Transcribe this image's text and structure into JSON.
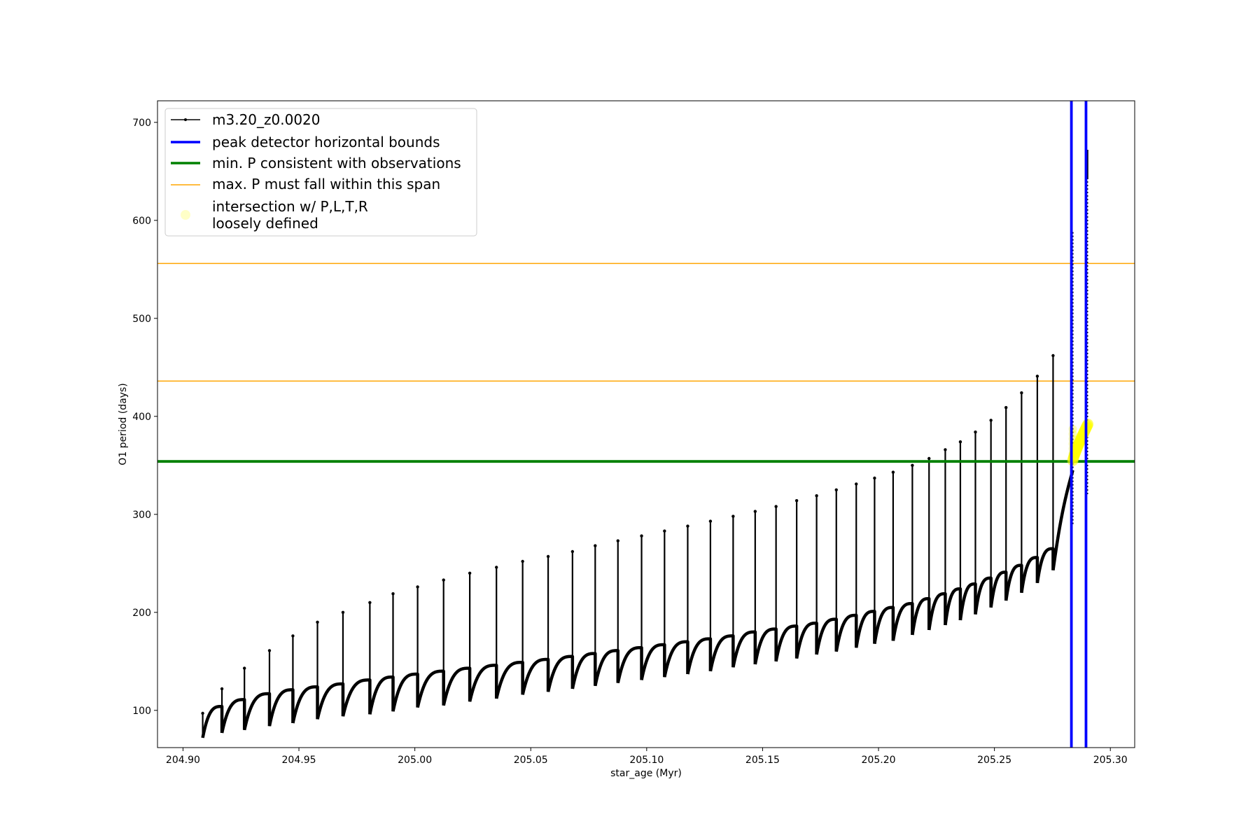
{
  "chart_data": {
    "type": "line",
    "title": "",
    "xlabel": "star_age (Myr)",
    "ylabel": "O1 period (days)",
    "xlim": [
      204.889,
      205.3105
    ],
    "ylim": [
      62,
      722
    ],
    "xticks": [
      204.9,
      204.95,
      205.0,
      205.05,
      205.1,
      205.15,
      205.2,
      205.25,
      205.3
    ],
    "xtick_labels": [
      "204.90",
      "204.95",
      "205.00",
      "205.05",
      "205.10",
      "205.15",
      "205.20",
      "205.25",
      "205.30"
    ],
    "yticks": [
      100,
      200,
      300,
      400,
      500,
      600,
      700
    ],
    "ytick_labels": [
      "100",
      "200",
      "300",
      "400",
      "500",
      "600",
      "700"
    ],
    "grid": false,
    "legend_position": "top-left",
    "series": [
      {
        "name": "m3.20_z0.0020",
        "color": "#000000",
        "marker": "dot",
        "pulse_ages": [
          204.9085,
          204.9168,
          204.9265,
          204.9373,
          204.9474,
          204.958,
          204.969,
          204.9806,
          204.9906,
          205.0012,
          205.0124,
          205.0237,
          205.0352,
          205.0465,
          205.0575,
          205.068,
          205.0778,
          205.0876,
          205.0978,
          205.1077,
          205.1177,
          205.1275,
          205.1373,
          205.1468,
          205.1558,
          205.1647,
          205.1733,
          205.1818,
          205.1904,
          205.1983,
          205.2063,
          205.2146,
          205.2218,
          205.2288,
          205.2353,
          205.2418,
          205.2485,
          205.255,
          205.2617,
          205.2685,
          205.2753
        ],
        "pulse_base_before": [
          null,
          104,
          111,
          117,
          121,
          124,
          127,
          131,
          134,
          137,
          140,
          143,
          146,
          149,
          152,
          155,
          158,
          161,
          164,
          167,
          170,
          173,
          176,
          180,
          183,
          186,
          189,
          193,
          197,
          201,
          205,
          209,
          214,
          219,
          224,
          229,
          235,
          241,
          248,
          256,
          265
        ],
        "pulse_minimum": [
          72,
          77,
          80,
          84,
          87,
          91,
          94,
          96,
          99,
          103,
          105,
          109,
          112,
          116,
          119,
          122,
          125,
          128,
          131,
          134,
          137,
          140,
          144,
          147,
          150,
          153,
          157,
          160,
          164,
          168,
          171,
          177,
          182,
          187,
          192,
          198,
          205,
          212,
          220,
          230,
          243
        ],
        "pulse_peak": [
          97,
          122,
          143,
          161,
          176,
          190,
          200,
          210,
          219,
          226,
          233,
          240,
          246,
          252,
          257,
          262,
          268,
          273,
          278,
          283,
          288,
          293,
          298,
          303,
          308,
          314,
          319,
          325,
          331,
          337,
          343,
          350,
          357,
          366,
          374,
          384,
          396,
          409,
          424,
          441,
          462
        ],
        "final_rise_end": [
          205.2838,
          345
        ]
      },
      {
        "name": "peak detector horizontal bounds",
        "color": "#0000ff",
        "type": "vline",
        "x": [
          205.2832,
          205.2895
        ]
      },
      {
        "name": "min. P consistent with observations",
        "color": "#008000",
        "type": "hline",
        "y": [
          354
        ]
      },
      {
        "name": "max. P must fall within this span",
        "color": "#ffa500",
        "type": "hline",
        "y": [
          436,
          556
        ]
      },
      {
        "name": "intersection w/ P,L,T,R\nloosely defined",
        "color": "#ffff00",
        "type": "scatter",
        "x_range": [
          205.2832,
          205.2903
        ],
        "y_range": [
          355,
          392
        ]
      }
    ]
  }
}
